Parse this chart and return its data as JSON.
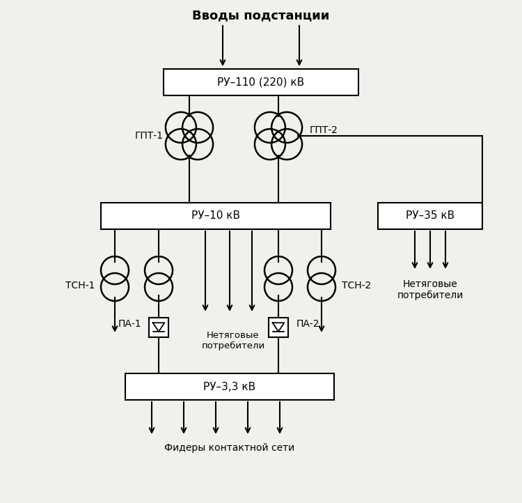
{
  "bg_color": "#f0f0ec",
  "title": "Вводы подстанции",
  "lc": "#000000",
  "tc": "#000000",
  "fs": 10,
  "ru110_label": "РУ–110 (220) кВ",
  "ru10_label": "РУ–10 кВ",
  "ru35_label": "РУ–35 кВ",
  "ru33_label": "РУ–3,3 кВ",
  "gpt1_label": "ГПТ-1",
  "gpt2_label": "ГПТ-2",
  "tsn1_label": "ТСН-1",
  "tsn2_label": "ТСН-2",
  "pa1_label": "ПА-1",
  "pa2_label": "ПА-2",
  "net_right_label": "Нетяговые\nпотребители",
  "net_center_label": "Нетяговые\nпотребители",
  "feeders_label": "Фидеры контактной сети"
}
